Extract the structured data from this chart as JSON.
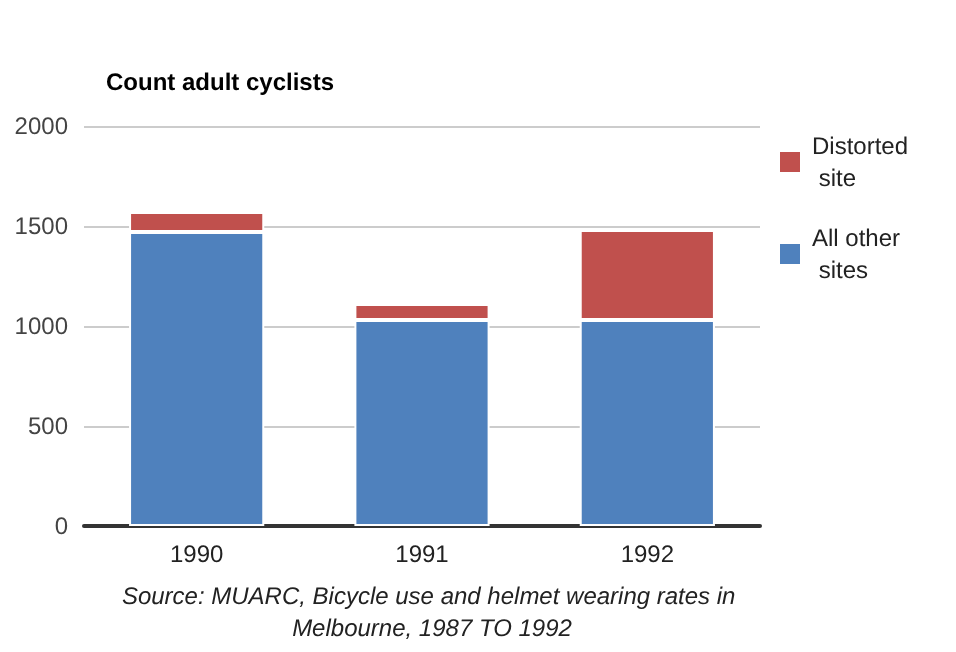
{
  "chart_data": {
    "type": "bar",
    "title": "Count adult cyclists",
    "categories": [
      "1990",
      "1991",
      "1992"
    ],
    "stacked": true,
    "series": [
      {
        "name": "All other sites",
        "color": "#4f81bd",
        "values": [
          1470,
          1030,
          1030
        ]
      },
      {
        "name": "Distorted site",
        "color": "#c0504d",
        "values": [
          100,
          80,
          450
        ]
      }
    ],
    "ylim": [
      0,
      2000
    ],
    "yticks": [
      0,
      500,
      1000,
      1500,
      2000
    ],
    "grid": "y",
    "legend": "right",
    "annotations": [
      "Source: MUARC, Bicycle use and helmet wearing rates in Melbourne, 1987 TO 1992"
    ]
  }
}
